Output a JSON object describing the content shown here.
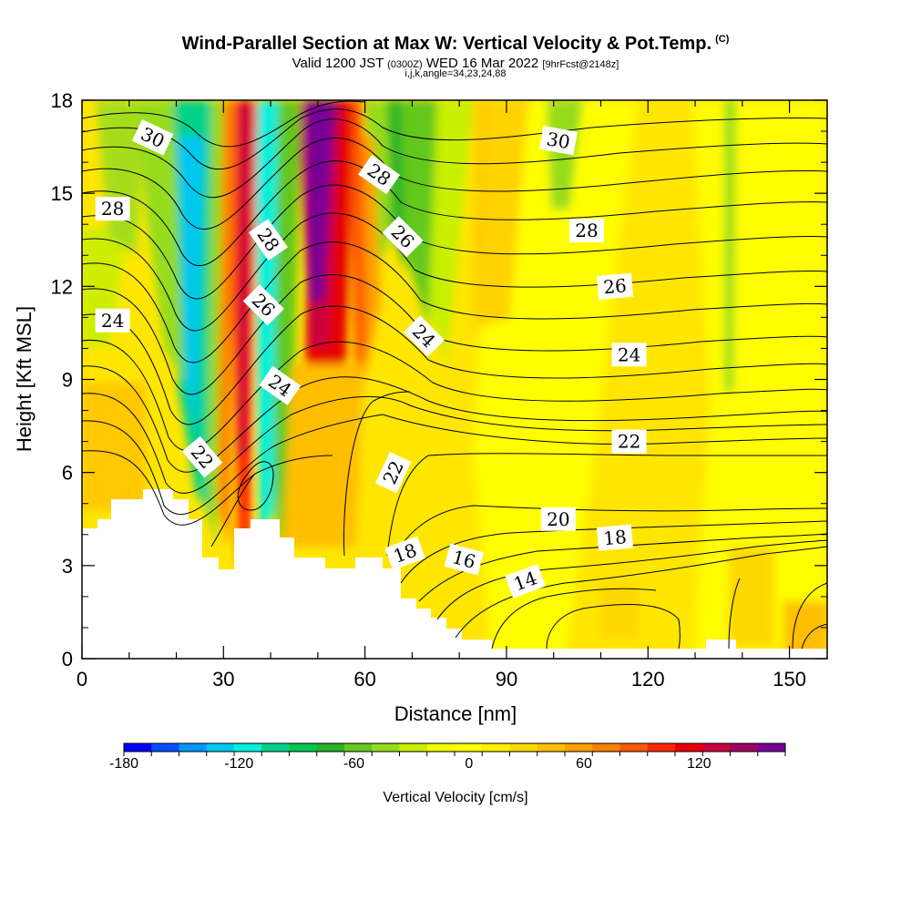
{
  "title": "Wind-Parallel Section at Max W: Vertical Velocity & Pot.Temp.",
  "copyright_mark": "(C)",
  "subtitle_prefix": "Valid 1200 JST",
  "subtitle_utc": "(0300Z)",
  "subtitle_date": "WED 16 Mar 2022",
  "subtitle_forecast": "[9hrFcst@2148z]",
  "subtitle_indices": "i,j,k,angle=34,23,24,88",
  "chart_data": {
    "type": "heatmap",
    "xlabel": "Distance [nm]",
    "ylabel": "Height [Kft MSL]",
    "xlim": [
      0,
      158
    ],
    "ylim": [
      0,
      18
    ],
    "x_ticks": [
      0,
      30,
      60,
      90,
      120,
      150
    ],
    "y_ticks": [
      0,
      3,
      6,
      9,
      12,
      15,
      18
    ],
    "colorbar": {
      "title": "Vertical Velocity [cm/s]",
      "min": -180,
      "max": 150,
      "step": 15,
      "tick_values": [
        -180,
        -120,
        -60,
        0,
        60,
        120
      ],
      "tick_labels": [
        "-180",
        "-120",
        "-60",
        "0",
        "60",
        "120"
      ],
      "colors": [
        "#0000ff",
        "#0050ff",
        "#0096ff",
        "#00c8f0",
        "#00f0dc",
        "#00d28c",
        "#00c850",
        "#28b428",
        "#64c81e",
        "#96dc1e",
        "#c8f000",
        "#f0ff00",
        "#ffff00",
        "#fff000",
        "#ffd700",
        "#ffbe00",
        "#ffa000",
        "#ff8000",
        "#ff5a00",
        "#ff2800",
        "#e60000",
        "#c8003c",
        "#a00064",
        "#780096"
      ]
    },
    "contour_labels": [
      {
        "text": "30",
        "x": 15,
        "y": 16.8,
        "angle": 25
      },
      {
        "text": "28",
        "x": 6.5,
        "y": 14.5,
        "angle": 0
      },
      {
        "text": "24",
        "x": 6.5,
        "y": 10.9,
        "angle": 0
      },
      {
        "text": "22",
        "x": 25.5,
        "y": 6.5,
        "angle": 50
      },
      {
        "text": "28",
        "x": 39.5,
        "y": 13.5,
        "angle": 55
      },
      {
        "text": "26",
        "x": 38.5,
        "y": 11.4,
        "angle": 45
      },
      {
        "text": "24",
        "x": 42,
        "y": 8.8,
        "angle": 35
      },
      {
        "text": "28",
        "x": 63,
        "y": 15.6,
        "angle": 35
      },
      {
        "text": "26",
        "x": 68,
        "y": 13.6,
        "angle": 45
      },
      {
        "text": "24",
        "x": 72.5,
        "y": 10.4,
        "angle": 45
      },
      {
        "text": "22",
        "x": 66,
        "y": 6.0,
        "angle": -65
      },
      {
        "text": "18",
        "x": 68.5,
        "y": 3.4,
        "angle": -20
      },
      {
        "text": "16",
        "x": 81,
        "y": 3.2,
        "angle": 15
      },
      {
        "text": "14",
        "x": 94,
        "y": 2.5,
        "angle": -20
      },
      {
        "text": "30",
        "x": 101,
        "y": 16.7,
        "angle": 10
      },
      {
        "text": "28",
        "x": 107,
        "y": 13.8,
        "angle": 0
      },
      {
        "text": "26",
        "x": 113,
        "y": 12.0,
        "angle": -5
      },
      {
        "text": "24",
        "x": 116,
        "y": 9.8,
        "angle": 0
      },
      {
        "text": "22",
        "x": 116,
        "y": 7.0,
        "angle": 0
      },
      {
        "text": "20",
        "x": 101,
        "y": 4.5,
        "angle": 0
      },
      {
        "text": "18",
        "x": 113,
        "y": 3.9,
        "angle": -5
      }
    ]
  }
}
